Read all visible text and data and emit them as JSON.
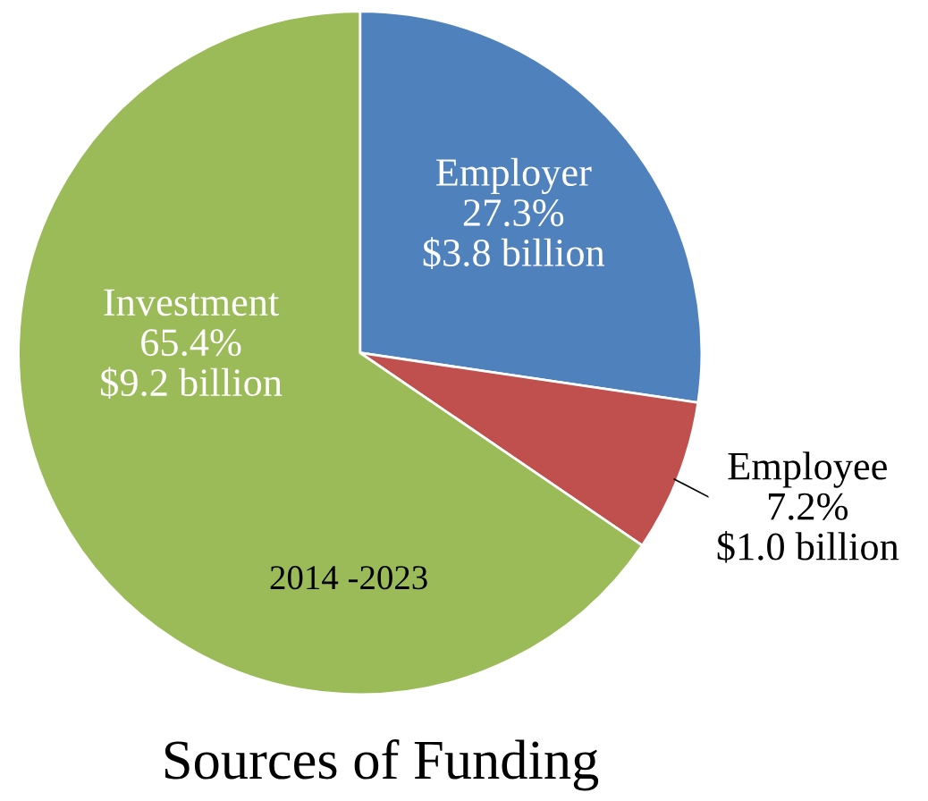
{
  "chart_data": {
    "type": "pie",
    "title": "Sources of Funding",
    "categories": [
      "Employer",
      "Employee",
      "Investment"
    ],
    "values": [
      27.3,
      7.2,
      65.4
    ],
    "colors": [
      "#4f81bd",
      "#c0504d",
      "#9bbb59"
    ],
    "value_labels": [
      "27.3%\n$3.8 billion",
      "7.2%\n$1.0 billion",
      "65.4%\n$9.2 billion"
    ],
    "annotations": [
      "2014 -2023"
    ],
    "legend": false
  }
}
